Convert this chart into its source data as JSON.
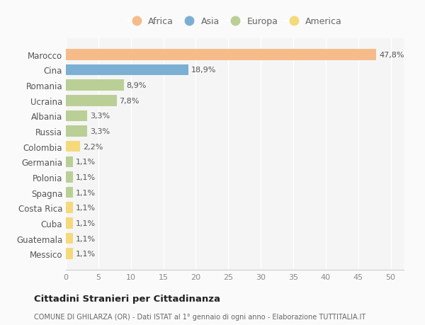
{
  "countries": [
    "Marocco",
    "Cina",
    "Romania",
    "Ucraina",
    "Albania",
    "Russia",
    "Colombia",
    "Germania",
    "Polonia",
    "Spagna",
    "Costa Rica",
    "Cuba",
    "Guatemala",
    "Messico"
  ],
  "values": [
    47.8,
    18.9,
    8.9,
    7.8,
    3.3,
    3.3,
    2.2,
    1.1,
    1.1,
    1.1,
    1.1,
    1.1,
    1.1,
    1.1
  ],
  "labels": [
    "47,8%",
    "18,9%",
    "8,9%",
    "7,8%",
    "3,3%",
    "3,3%",
    "2,2%",
    "1,1%",
    "1,1%",
    "1,1%",
    "1,1%",
    "1,1%",
    "1,1%",
    "1,1%"
  ],
  "continents": [
    "Africa",
    "Asia",
    "Europa",
    "Europa",
    "Europa",
    "Europa",
    "America",
    "Europa",
    "Europa",
    "Europa",
    "America",
    "America",
    "America",
    "America"
  ],
  "colors": {
    "Africa": "#F5BC8A",
    "Asia": "#7BAFD4",
    "Europa": "#BACF96",
    "America": "#F5D97A"
  },
  "legend_order": [
    "Africa",
    "Asia",
    "Europa",
    "America"
  ],
  "xlim": [
    0,
    52
  ],
  "xticks": [
    0,
    5,
    10,
    15,
    20,
    25,
    30,
    35,
    40,
    45,
    50
  ],
  "title": "Cittadini Stranieri per Cittadinanza",
  "subtitle": "COMUNE DI GHILARZA (OR) - Dati ISTAT al 1° gennaio di ogni anno - Elaborazione TUTTITALIA.IT",
  "bg_color": "#FAFAFA",
  "plot_bg": "#F5F5F5",
  "grid_color": "#FFFFFF",
  "bar_height": 0.72,
  "label_fontsize": 8,
  "ytick_fontsize": 8.5,
  "xtick_fontsize": 8
}
